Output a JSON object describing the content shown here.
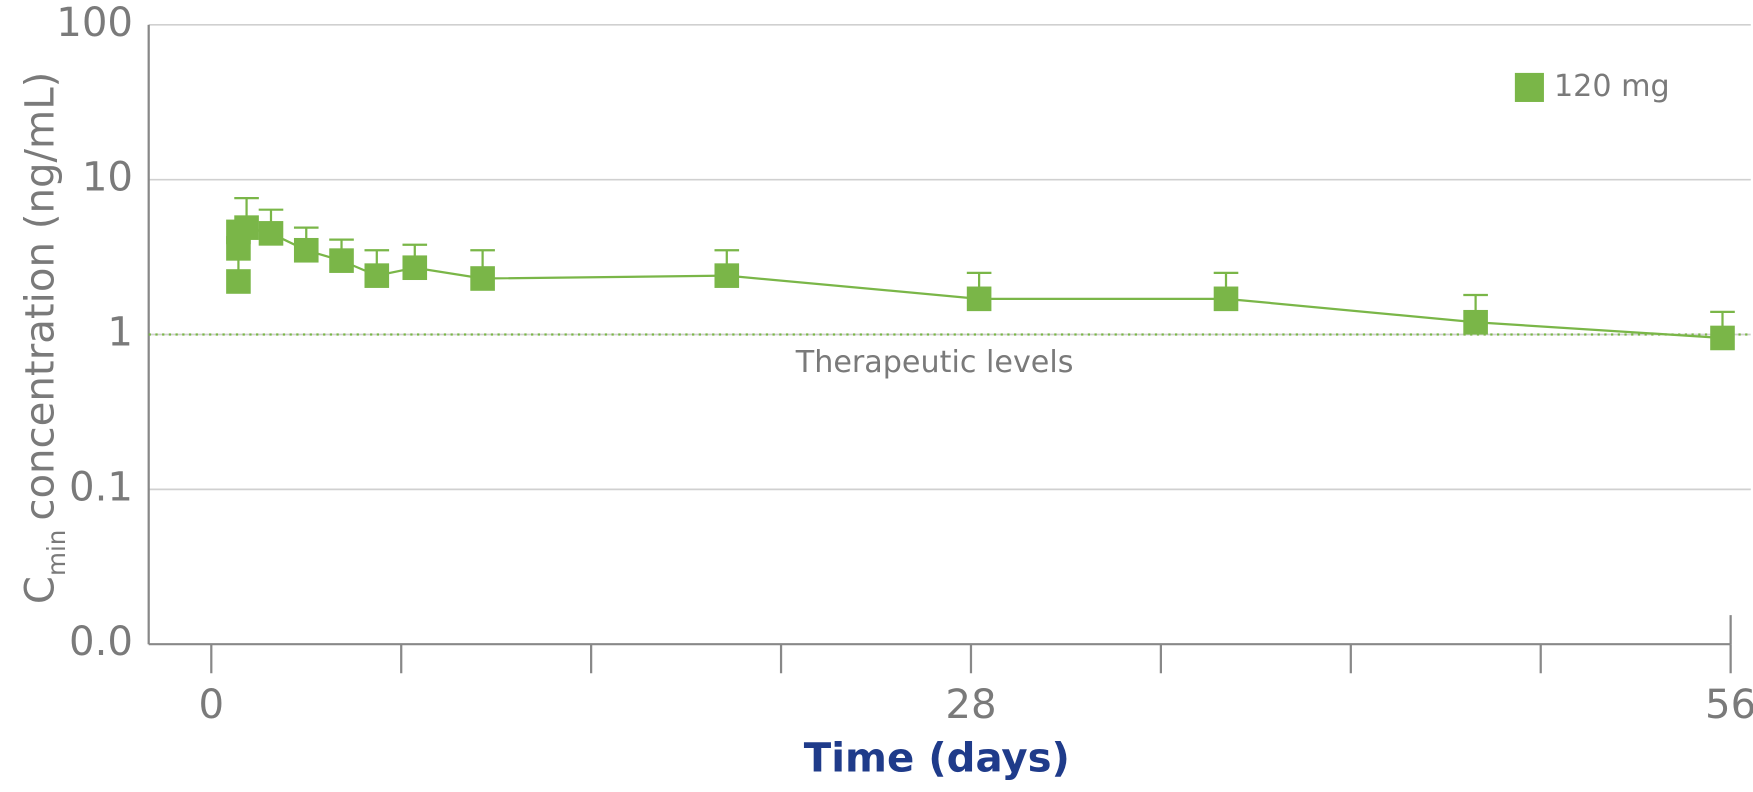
{
  "chart_data": {
    "type": "line",
    "x_label": "Time (days)",
    "y_label": {
      "main": "C",
      "subscript": "min",
      "rest": "concentration (ng/mL)"
    },
    "x": [
      1,
      1,
      1,
      1.3,
      2.2,
      3.5,
      4.8,
      6.1,
      7.5,
      10,
      19,
      28.3,
      37.4,
      46.6,
      55.7
    ],
    "series": [
      {
        "name": "120 mg",
        "color": "#7ab648",
        "values": [
          2.2,
          3.6,
          4.6,
          4.9,
          4.5,
          3.5,
          3.0,
          2.4,
          2.7,
          2.3,
          2.4,
          1.7,
          1.7,
          1.2,
          0.95
        ],
        "errors": [
          null,
          null,
          null,
          2.7,
          1.9,
          1.4,
          1.1,
          1.1,
          1.1,
          1.2,
          1.1,
          0.8,
          0.8,
          0.6,
          0.45
        ]
      }
    ],
    "xlim": [
      0,
      56
    ],
    "xticks": [
      0,
      28,
      56
    ],
    "xminor_ticks": [
      7,
      14,
      21,
      35,
      42,
      49
    ],
    "ylim": [
      0.01,
      100
    ],
    "yticks": [
      {
        "value": 0.01,
        "label": "0.0"
      },
      0.1,
      1,
      10,
      100
    ],
    "log_y": true,
    "grid": true,
    "legend": "top-right",
    "threshold": {
      "value": 1,
      "label": "Therapeutic levels"
    }
  }
}
